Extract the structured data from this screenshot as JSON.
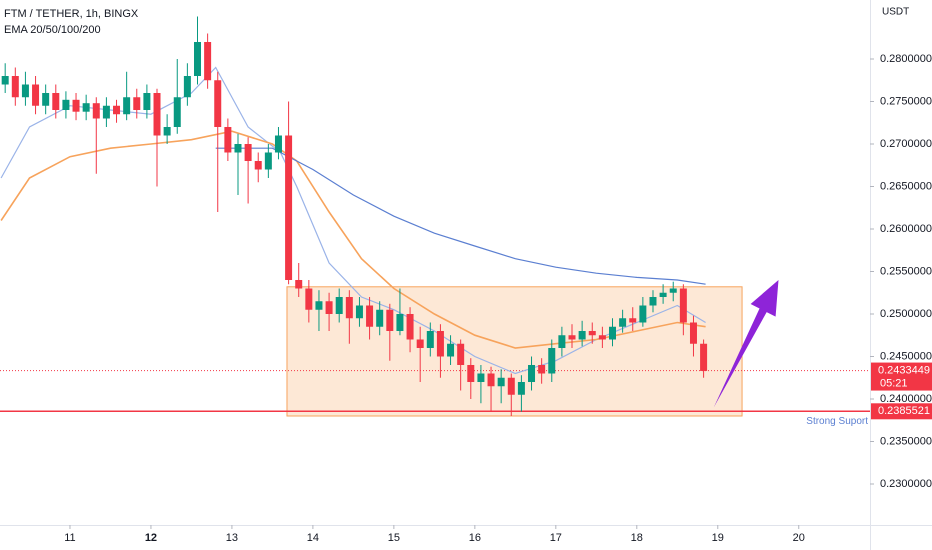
{
  "chart_data": {
    "type": "candlestick",
    "title": "FTM / TETHER, 1h, BINGX",
    "subtitle": "EMA 20/50/100/200",
    "y_axis_label": "USDT",
    "x": [
      10.2,
      10.325,
      10.45,
      10.575,
      10.7,
      10.825,
      10.95,
      11.075,
      11.2,
      11.325,
      11.45,
      11.575,
      11.7,
      11.825,
      11.95,
      12.075,
      12.2,
      12.325,
      12.45,
      12.575,
      12.7,
      12.825,
      12.95,
      13.075,
      13.2,
      13.325,
      13.45,
      13.575,
      13.7,
      13.825,
      13.95,
      14.075,
      14.2,
      14.325,
      14.45,
      14.575,
      14.7,
      14.825,
      14.95,
      15.075,
      15.2,
      15.325,
      15.45,
      15.575,
      15.7,
      15.825,
      15.95,
      16.075,
      16.2,
      16.325,
      16.45,
      16.575,
      16.7,
      16.825,
      16.95,
      17.075,
      17.2,
      17.325,
      17.45,
      17.575,
      17.7,
      17.825,
      17.95,
      18.075,
      18.2,
      18.325,
      18.45,
      18.575,
      18.7,
      18.825
    ],
    "candles": {
      "open": [
        0.277,
        0.278,
        0.2755,
        0.277,
        0.2745,
        0.276,
        0.274,
        0.2752,
        0.2738,
        0.2748,
        0.273,
        0.2745,
        0.2735,
        0.2755,
        0.274,
        0.276,
        0.271,
        0.272,
        0.2755,
        0.278,
        0.282,
        0.2775,
        0.272,
        0.269,
        0.27,
        0.268,
        0.267,
        0.269,
        0.271,
        0.254,
        0.253,
        0.2505,
        0.2515,
        0.25,
        0.252,
        0.2495,
        0.251,
        0.2485,
        0.2505,
        0.248,
        0.25,
        0.247,
        0.246,
        0.248,
        0.245,
        0.2465,
        0.244,
        0.242,
        0.243,
        0.2415,
        0.2425,
        0.2405,
        0.242,
        0.244,
        0.243,
        0.246,
        0.2475,
        0.247,
        0.248,
        0.2475,
        0.247,
        0.2485,
        0.2495,
        0.249,
        0.251,
        0.252,
        0.2525,
        0.253,
        0.249,
        0.2465
      ],
      "high": [
        0.2795,
        0.279,
        0.2785,
        0.278,
        0.277,
        0.277,
        0.2762,
        0.276,
        0.2758,
        0.2755,
        0.2755,
        0.2752,
        0.2785,
        0.2765,
        0.277,
        0.2765,
        0.2735,
        0.28,
        0.2795,
        0.285,
        0.283,
        0.2785,
        0.273,
        0.2712,
        0.2708,
        0.269,
        0.27,
        0.272,
        0.275,
        0.256,
        0.254,
        0.2528,
        0.2525,
        0.253,
        0.2528,
        0.252,
        0.252,
        0.2515,
        0.2512,
        0.253,
        0.2508,
        0.2485,
        0.249,
        0.2488,
        0.2475,
        0.247,
        0.2448,
        0.244,
        0.2438,
        0.2435,
        0.243,
        0.2428,
        0.245,
        0.2448,
        0.247,
        0.2485,
        0.2488,
        0.2492,
        0.249,
        0.2485,
        0.2495,
        0.2505,
        0.2508,
        0.252,
        0.2528,
        0.2535,
        0.2538,
        0.2535,
        0.2498,
        0.247
      ],
      "low": [
        0.276,
        0.2745,
        0.2745,
        0.2735,
        0.2735,
        0.273,
        0.273,
        0.2728,
        0.2728,
        0.2665,
        0.272,
        0.2725,
        0.2728,
        0.273,
        0.273,
        0.265,
        0.27,
        0.2712,
        0.2745,
        0.277,
        0.2765,
        0.262,
        0.268,
        0.264,
        0.263,
        0.2655,
        0.266,
        0.2682,
        0.2535,
        0.252,
        0.249,
        0.248,
        0.248,
        0.249,
        0.2465,
        0.2485,
        0.247,
        0.2475,
        0.2445,
        0.2475,
        0.2455,
        0.242,
        0.245,
        0.2425,
        0.244,
        0.241,
        0.24,
        0.2395,
        0.2385,
        0.2395,
        0.238,
        0.2385,
        0.241,
        0.2418,
        0.242,
        0.245,
        0.246,
        0.2462,
        0.2465,
        0.246,
        0.2462,
        0.2478,
        0.248,
        0.2485,
        0.2502,
        0.2512,
        0.2515,
        0.2475,
        0.245,
        0.2425
      ],
      "close": [
        0.278,
        0.2755,
        0.277,
        0.2745,
        0.276,
        0.274,
        0.2752,
        0.2738,
        0.2748,
        0.273,
        0.2745,
        0.2735,
        0.2755,
        0.274,
        0.276,
        0.271,
        0.272,
        0.2755,
        0.278,
        0.282,
        0.2775,
        0.272,
        0.269,
        0.27,
        0.268,
        0.267,
        0.269,
        0.271,
        0.254,
        0.253,
        0.2505,
        0.2515,
        0.25,
        0.252,
        0.2495,
        0.251,
        0.2485,
        0.2505,
        0.248,
        0.25,
        0.247,
        0.246,
        0.248,
        0.245,
        0.2465,
        0.244,
        0.242,
        0.243,
        0.2415,
        0.2425,
        0.2405,
        0.242,
        0.244,
        0.243,
        0.246,
        0.2475,
        0.247,
        0.248,
        0.2475,
        0.247,
        0.2485,
        0.2495,
        0.249,
        0.251,
        0.252,
        0.2525,
        0.253,
        0.249,
        0.2465,
        0.2433
      ]
    },
    "up_color": "#089981",
    "down_color": "#f23645",
    "series": [
      {
        "color": "#9ab3e8",
        "x": [
          10.15,
          10.5,
          11,
          11.5,
          12,
          12.5,
          12.8,
          13.2,
          13.6,
          13.8,
          14.2,
          14.6,
          15,
          15.5,
          16,
          16.5,
          17,
          17.5,
          18,
          18.5,
          18.85
        ],
        "values": [
          0.266,
          0.272,
          0.2745,
          0.274,
          0.2735,
          0.276,
          0.279,
          0.272,
          0.269,
          0.265,
          0.256,
          0.252,
          0.2505,
          0.248,
          0.245,
          0.243,
          0.2445,
          0.247,
          0.249,
          0.251,
          0.249
        ]
      },
      {
        "color": "#f7a35c",
        "x": [
          10.15,
          10.5,
          11,
          11.5,
          12,
          12.5,
          13,
          13.5,
          13.8,
          14.2,
          14.6,
          15,
          15.5,
          16,
          16.5,
          17,
          17.5,
          18,
          18.5,
          18.85
        ],
        "values": [
          0.261,
          0.266,
          0.2685,
          0.2695,
          0.27,
          0.2705,
          0.2715,
          0.27,
          0.268,
          0.262,
          0.2565,
          0.253,
          0.25,
          0.2475,
          0.246,
          0.2465,
          0.247,
          0.248,
          0.249,
          0.2485
        ]
      },
      {
        "color": "#5b7fd1",
        "x": [
          12.8,
          13.5,
          14,
          14.5,
          15,
          15.5,
          16,
          16.5,
          17,
          17.5,
          18,
          18.5,
          18.85
        ],
        "values": [
          0.2695,
          0.2695,
          0.267,
          0.264,
          0.2615,
          0.2595,
          0.258,
          0.2565,
          0.2555,
          0.2548,
          0.2543,
          0.254,
          0.2535
        ]
      }
    ],
    "zone": {
      "x": [
        13.68,
        19.3
      ],
      "y": [
        0.238,
        0.2532
      ],
      "color": "#f7a35c"
    },
    "support": {
      "value": 0.2385521,
      "text": "Strong Suport",
      "color": "#f23645"
    },
    "last_price": {
      "value": 0.2433449,
      "countdown": "05:21",
      "color": "#f23645"
    },
    "arrow": {
      "from": [
        18.95,
        0.239
      ],
      "to": [
        19.75,
        0.254
      ],
      "color": "#8e24d8"
    },
    "xlim": [
      10.136,
      20.88
    ],
    "ylim": [
      0.225176,
      0.286941
    ],
    "xticks": [
      11,
      12,
      13,
      14,
      15,
      16,
      17,
      18,
      19,
      20
    ],
    "yticks": [
      {
        "value": 0.23,
        "label": "0.2300000"
      },
      {
        "value": 0.235,
        "label": "0.2350000"
      },
      {
        "value": 0.24,
        "label": "0.2400000"
      },
      {
        "value": 0.245,
        "label": "0.2450000"
      },
      {
        "value": 0.25,
        "label": "0.2500000"
      },
      {
        "value": 0.255,
        "label": "0.2550000"
      },
      {
        "value": 0.26,
        "label": "0.2600000"
      },
      {
        "value": 0.265,
        "label": "0.2650000"
      },
      {
        "value": 0.27,
        "label": "0.2700000"
      },
      {
        "value": 0.275,
        "label": "0.2750000"
      },
      {
        "value": 0.28,
        "label": "0.2800000"
      }
    ]
  }
}
